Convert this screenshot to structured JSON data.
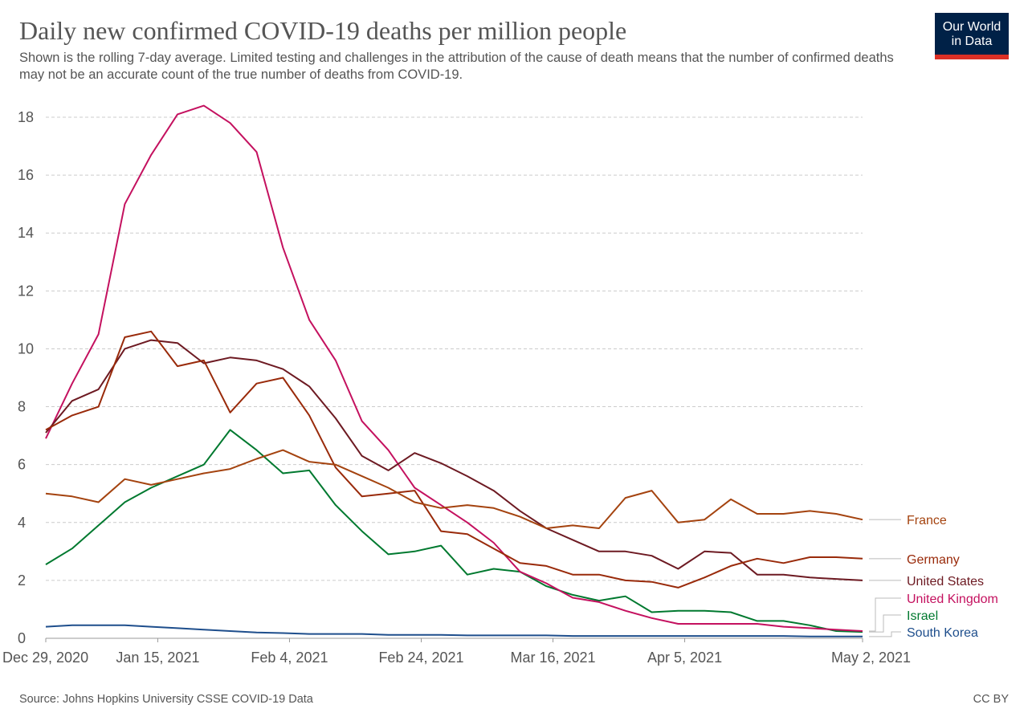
{
  "header": {
    "title": "Daily new confirmed COVID-19 deaths per million people",
    "subtitle": "Shown is the rolling 7-day average. Limited testing and challenges in the attribution of the cause of death means that the number of confirmed deaths may not be an accurate count of the true number of deaths from COVID-19.",
    "logo_line1": "Our World",
    "logo_line2": "in Data"
  },
  "footer": {
    "source": "Source: Johns Hopkins University CSSE COVID-19 Data",
    "license": "CC BY"
  },
  "chart_data": {
    "type": "line",
    "grid": "horizontal dashed",
    "legend": "right (line-end labels)",
    "ylim": [
      0,
      18
    ],
    "yticks": [
      0,
      2,
      4,
      6,
      8,
      10,
      12,
      14,
      16,
      18
    ],
    "xlim": [
      "2020-12-29",
      "2021-05-02"
    ],
    "xticks": [
      {
        "date": "2020-12-29",
        "label": "Dec 29, 2020"
      },
      {
        "date": "2021-01-15",
        "label": "Jan 15, 2021"
      },
      {
        "date": "2021-02-04",
        "label": "Feb 4, 2021"
      },
      {
        "date": "2021-02-24",
        "label": "Feb 24, 2021"
      },
      {
        "date": "2021-03-16",
        "label": "Mar 16, 2021"
      },
      {
        "date": "2021-04-05",
        "label": "Apr 5, 2021"
      },
      {
        "date": "2021-05-02",
        "label": "May 2, 2021"
      }
    ],
    "x": [
      "2020-12-29",
      "2021-01-02",
      "2021-01-06",
      "2021-01-10",
      "2021-01-14",
      "2021-01-18",
      "2021-01-22",
      "2021-01-26",
      "2021-01-30",
      "2021-02-03",
      "2021-02-07",
      "2021-02-11",
      "2021-02-15",
      "2021-02-19",
      "2021-02-23",
      "2021-02-27",
      "2021-03-03",
      "2021-03-07",
      "2021-03-11",
      "2021-03-15",
      "2021-03-19",
      "2021-03-23",
      "2021-03-27",
      "2021-03-31",
      "2021-04-04",
      "2021-04-08",
      "2021-04-12",
      "2021-04-16",
      "2021-04-20",
      "2021-04-24",
      "2021-04-28",
      "2021-05-02"
    ],
    "series": [
      {
        "name": "France",
        "color": "#a4430f",
        "values": [
          5.0,
          4.9,
          4.7,
          5.5,
          5.3,
          5.5,
          5.7,
          5.85,
          6.2,
          6.5,
          6.1,
          6.0,
          5.6,
          5.2,
          4.7,
          4.5,
          4.6,
          4.5,
          4.2,
          3.8,
          3.9,
          3.8,
          4.85,
          5.1,
          4.0,
          4.1,
          4.8,
          4.3,
          4.3,
          4.4,
          4.3,
          4.1
        ]
      },
      {
        "name": "Germany",
        "color": "#992a0a",
        "values": [
          7.2,
          7.7,
          8.0,
          10.4,
          10.6,
          9.4,
          9.6,
          7.8,
          8.8,
          9.0,
          7.7,
          5.9,
          4.9,
          5.0,
          5.1,
          3.7,
          3.6,
          3.1,
          2.6,
          2.5,
          2.2,
          2.2,
          2.0,
          1.95,
          1.75,
          2.1,
          2.5,
          2.75,
          2.6,
          2.8,
          2.8,
          2.75
        ]
      },
      {
        "name": "United States",
        "color": "#6d1a22",
        "values": [
          7.1,
          8.2,
          8.6,
          10.0,
          10.3,
          10.2,
          9.5,
          9.7,
          9.6,
          9.3,
          8.7,
          7.6,
          6.3,
          5.8,
          6.4,
          6.05,
          5.6,
          5.1,
          4.4,
          3.8,
          3.4,
          3.0,
          3.0,
          2.85,
          2.4,
          3.0,
          2.95,
          2.2,
          2.2,
          2.1,
          2.05,
          2.0
        ]
      },
      {
        "name": "United Kingdom",
        "color": "#c4115f",
        "values": [
          6.9,
          8.8,
          10.5,
          15.0,
          16.7,
          18.1,
          18.4,
          17.8,
          16.8,
          13.5,
          11.0,
          9.6,
          7.5,
          6.5,
          5.2,
          4.6,
          4.0,
          3.3,
          2.3,
          1.9,
          1.4,
          1.25,
          0.95,
          0.7,
          0.5,
          0.5,
          0.5,
          0.5,
          0.4,
          0.35,
          0.3,
          0.25
        ]
      },
      {
        "name": "Israel",
        "color": "#00792f",
        "values": [
          2.55,
          3.1,
          3.9,
          4.7,
          5.2,
          5.6,
          6.0,
          7.2,
          6.5,
          5.7,
          5.8,
          4.6,
          3.7,
          2.9,
          3.0,
          3.2,
          2.2,
          2.4,
          2.3,
          1.8,
          1.5,
          1.3,
          1.45,
          0.9,
          0.95,
          0.95,
          0.9,
          0.6,
          0.6,
          0.45,
          0.25,
          0.22
        ]
      },
      {
        "name": "South Korea",
        "color": "#1e4e8c",
        "values": [
          0.4,
          0.45,
          0.45,
          0.45,
          0.4,
          0.35,
          0.3,
          0.25,
          0.2,
          0.18,
          0.15,
          0.15,
          0.15,
          0.12,
          0.12,
          0.12,
          0.1,
          0.1,
          0.1,
          0.1,
          0.08,
          0.08,
          0.08,
          0.08,
          0.08,
          0.08,
          0.08,
          0.08,
          0.08,
          0.06,
          0.06,
          0.06
        ]
      }
    ]
  }
}
